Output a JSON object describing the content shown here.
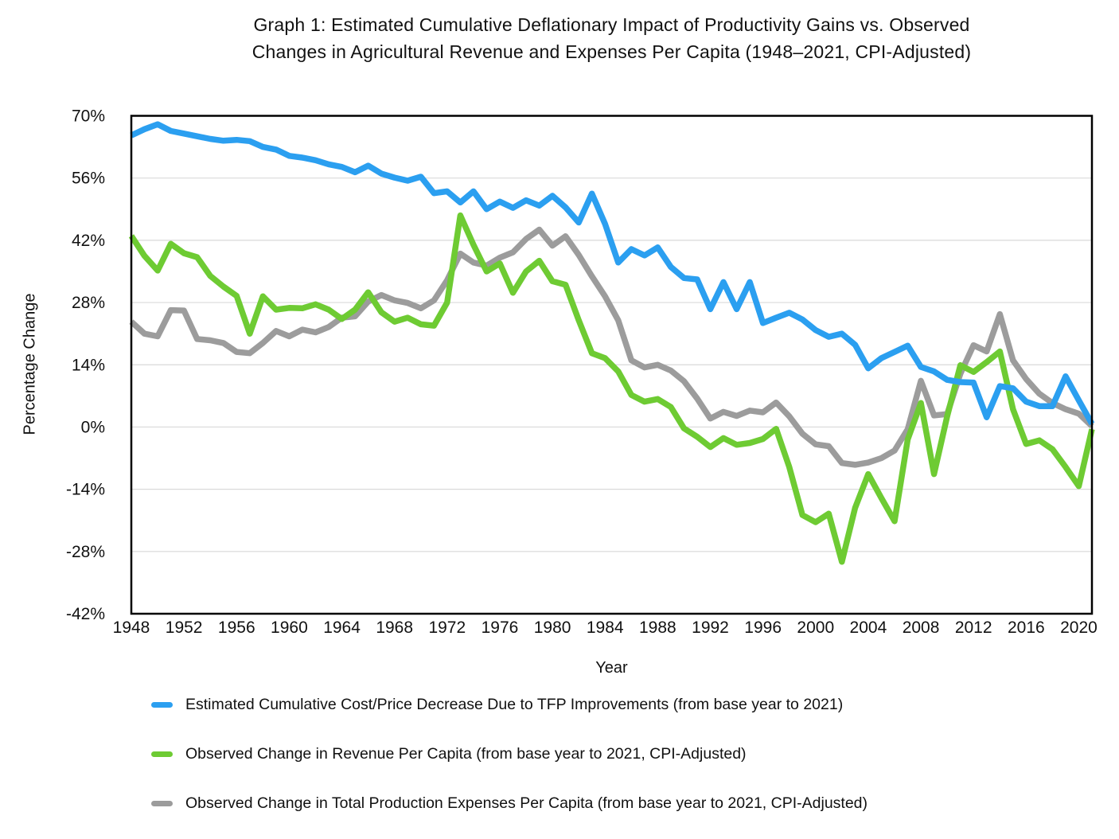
{
  "title": {
    "line1": "Graph 1: Estimated Cumulative Deflationary Impact of Productivity Gains vs. Observed",
    "line2": "Changes in Agricultural Revenue and Expenses Per Capita (1948–2021, CPI-Adjusted)"
  },
  "chart_data": {
    "type": "line",
    "title": "Graph 1: Estimated Cumulative Deflationary Impact of Productivity Gains vs. Observed Changes in Agricultural Revenue and Expenses Per Capita (1948–2021, CPI-Adjusted)",
    "xlabel": "Year",
    "ylabel": "Percentage Change",
    "x_range": [
      1948,
      2021
    ],
    "ylim": [
      -42,
      70
    ],
    "grid": true,
    "legend_position": "bottom-left",
    "x_ticks": [
      1948,
      1952,
      1956,
      1960,
      1964,
      1968,
      1972,
      1976,
      1980,
      1984,
      1988,
      1992,
      1996,
      2000,
      2004,
      2008,
      2012,
      2016,
      2020
    ],
    "y_ticks": [
      70,
      56,
      42,
      28,
      14,
      0,
      -14,
      -28,
      -42
    ],
    "y_tick_suffix": "%",
    "x": [
      1948,
      1949,
      1950,
      1951,
      1952,
      1953,
      1954,
      1955,
      1956,
      1957,
      1958,
      1959,
      1960,
      1961,
      1962,
      1963,
      1964,
      1965,
      1966,
      1967,
      1968,
      1969,
      1970,
      1971,
      1972,
      1973,
      1974,
      1975,
      1976,
      1977,
      1978,
      1979,
      1980,
      1981,
      1982,
      1983,
      1984,
      1985,
      1986,
      1987,
      1988,
      1989,
      1990,
      1991,
      1992,
      1993,
      1994,
      1995,
      1996,
      1997,
      1998,
      1999,
      2000,
      2001,
      2002,
      2003,
      2004,
      2005,
      2006,
      2007,
      2008,
      2009,
      2010,
      2011,
      2012,
      2013,
      2014,
      2015,
      2016,
      2017,
      2018,
      2019,
      2020,
      2021
    ],
    "series": [
      {
        "name": "Estimated Cumulative Cost/Price Decrease Due to TFP Improvements (from base year to 2021)",
        "color": "#2b9ff0",
        "values": [
          65.6,
          67.0,
          68.1,
          66.6,
          66.0,
          65.4,
          64.8,
          64.4,
          64.6,
          64.3,
          63.0,
          62.4,
          61.0,
          60.6,
          60.0,
          59.1,
          58.5,
          57.3,
          58.8,
          57.0,
          56.1,
          55.4,
          56.3,
          52.6,
          53.0,
          50.5,
          53.0,
          49.0,
          50.7,
          49.3,
          51.0,
          49.8,
          52.0,
          49.4,
          46.0,
          52.5,
          45.7,
          37.0,
          40.0,
          38.6,
          40.4,
          36.0,
          33.5,
          33.2,
          26.5,
          32.6,
          26.5,
          32.6,
          23.4,
          24.6,
          25.7,
          24.2,
          21.8,
          20.3,
          21.0,
          18.5,
          13.2,
          15.5,
          16.9,
          18.3,
          13.5,
          12.5,
          10.6,
          10.1,
          10.0,
          2.2,
          9.2,
          8.7,
          5.7,
          4.7,
          4.7,
          11.4,
          6.0,
          0.7
        ]
      },
      {
        "name": "Observed Change in Revenue Per Capita (from base year to 2021, CPI-Adjusted)",
        "color": "#6ecb33",
        "values": [
          43.0,
          38.5,
          35.2,
          41.2,
          39.1,
          38.2,
          34.0,
          31.6,
          29.5,
          21.0,
          29.4,
          26.4,
          26.8,
          26.7,
          27.6,
          26.4,
          24.3,
          26.4,
          30.3,
          25.8,
          23.7,
          24.6,
          23.1,
          22.8,
          28.0,
          47.6,
          41.0,
          35.0,
          36.8,
          30.2,
          35.0,
          37.4,
          32.8,
          32.0,
          24.0,
          16.6,
          15.5,
          12.5,
          7.2,
          5.7,
          6.3,
          4.5,
          -0.3,
          -2.2,
          -4.5,
          -2.5,
          -4.0,
          -3.6,
          -2.7,
          -0.4,
          -9.0,
          -19.8,
          -21.4,
          -19.5,
          -30.3,
          -18.2,
          -10.6,
          -16.0,
          -21.2,
          -2.8,
          5.4,
          -10.6,
          2.4,
          13.9,
          12.4,
          14.6,
          17.0,
          4.0,
          -3.8,
          -3.0,
          -5.0,
          -9.0,
          -13.3,
          -0.5
        ]
      },
      {
        "name": "Observed Change in Total Production Expenses Per Capita (from base year to 2021, CPI-Adjusted)",
        "color": "#9c9c9c",
        "values": [
          23.7,
          21.0,
          20.4,
          26.3,
          26.2,
          19.8,
          19.5,
          18.9,
          16.9,
          16.6,
          18.9,
          21.6,
          20.4,
          21.9,
          21.3,
          22.5,
          24.6,
          24.9,
          28.2,
          29.7,
          28.5,
          27.9,
          26.7,
          28.5,
          33.0,
          39.0,
          37.0,
          36.3,
          38.1,
          39.3,
          42.3,
          44.4,
          40.8,
          42.9,
          38.7,
          33.9,
          29.4,
          24.0,
          15.0,
          13.4,
          14.0,
          12.7,
          10.3,
          6.4,
          1.9,
          3.4,
          2.5,
          3.7,
          3.3,
          5.5,
          2.4,
          -1.5,
          -3.9,
          -4.3,
          -8.1,
          -8.5,
          -8.0,
          -7.0,
          -5.3,
          -0.5,
          10.4,
          2.6,
          2.9,
          12.0,
          18.4,
          17.0,
          25.4,
          15.0,
          10.8,
          7.5,
          5.4,
          4.0,
          3.0,
          0.2
        ]
      }
    ],
    "axis_color": "#000000",
    "grid_color": "#d9d9d9",
    "tick_font_size": 20
  }
}
